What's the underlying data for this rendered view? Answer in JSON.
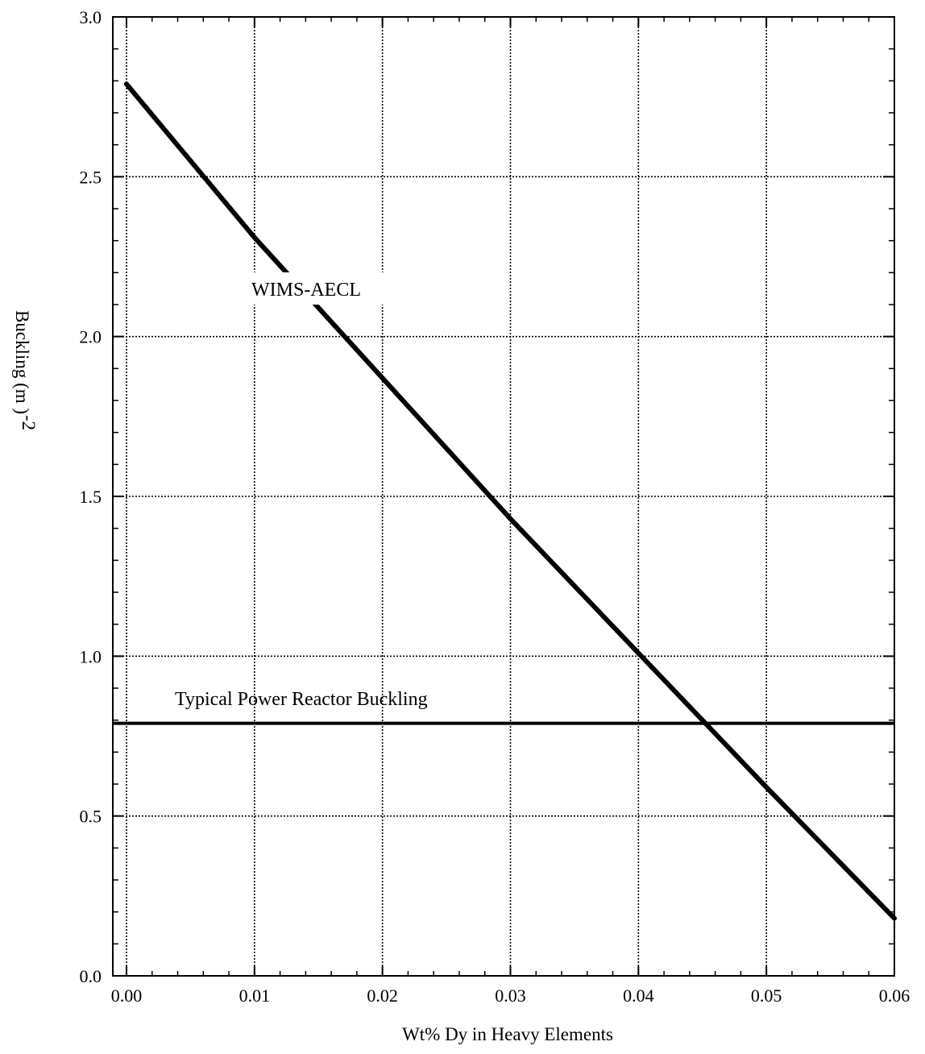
{
  "chart_data": {
    "type": "line",
    "xlabel": "Wt% Dy in Heavy Elements",
    "ylabel": "Buckling (m )",
    "ylabel_superscript": "-2",
    "xlim": [
      0.0,
      0.06
    ],
    "ylim": [
      0.0,
      3.0
    ],
    "x_ticks": [
      "0.00",
      "0.01",
      "0.02",
      "0.03",
      "0.04",
      "0.05",
      "0.06"
    ],
    "y_ticks": [
      "0.0",
      "0.5",
      "1.0",
      "1.5",
      "2.0",
      "2.5",
      "3.0"
    ],
    "grid": true,
    "series": [
      {
        "name": "WIMS-AECL",
        "x": [
          0.0,
          0.01,
          0.02,
          0.03,
          0.04,
          0.05,
          0.06
        ],
        "y": [
          2.79,
          2.31,
          1.87,
          1.43,
          1.01,
          0.59,
          0.18
        ]
      }
    ],
    "reference_lines": [
      {
        "label": "Typical Power Reactor Buckling",
        "y": 0.79
      }
    ]
  }
}
